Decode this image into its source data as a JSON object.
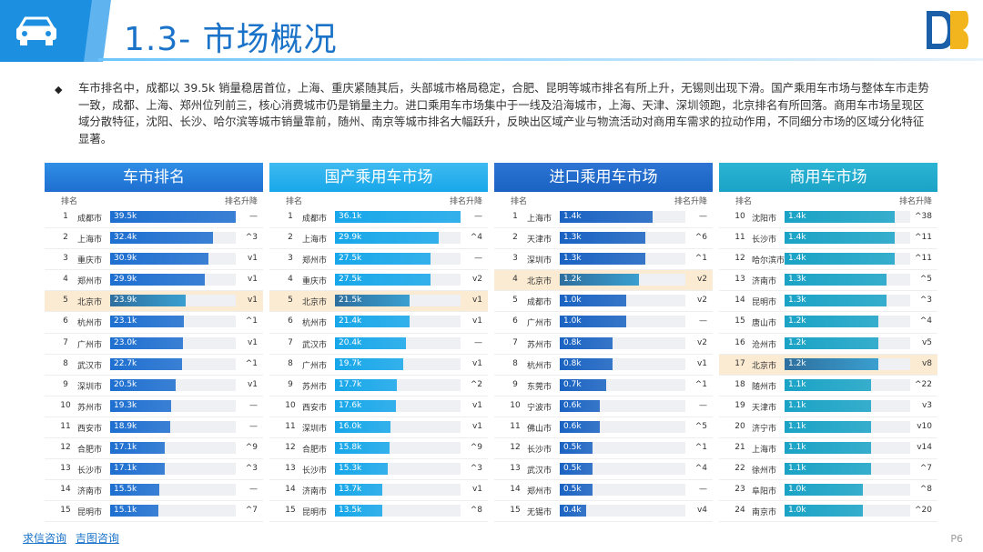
{
  "header": {
    "title": "1.3- 市场概况"
  },
  "summary": "车市排名中，成都以 39.5k 销量稳居首位，上海、重庆紧随其后，头部城市格局稳定，合肥、昆明等城市排名有所上升，无锡则出现下滑。国产乘用车市场与整体车市走势一致，成都、上海、郑州位列前三，核心消费城市仍是销量主力。进口乘用车市场集中于一线及沿海城市，上海、天津、深圳领跑，北京排名有所回落。商用车市场呈现区域分散特征，沈阳、长沙、哈尔滨等城市销量靠前，随州、南京等城市排名大幅跃升，反映出区域产业与物流活动对商用车需求的拉动作用，不同细分市场的区域分化特征显著。",
  "colors": {
    "bar1": "#1e6fd0",
    "bar2": "#17a7ea",
    "bar3": "#1a63c2",
    "bar4": "#1aa3c6",
    "highlight_bar": "#2e6f9e"
  },
  "panels": [
    {
      "title": "车市排名",
      "rank_label": "排名",
      "change_label": "排名升降",
      "max": 39.5,
      "rows": [
        {
          "rank": "1",
          "city": "成都市",
          "value": 39.5,
          "label": "39.5k",
          "change": "—"
        },
        {
          "rank": "2",
          "city": "上海市",
          "value": 32.4,
          "label": "32.4k",
          "change": "^3"
        },
        {
          "rank": "3",
          "city": "重庆市",
          "value": 30.9,
          "label": "30.9k",
          "change": "v1"
        },
        {
          "rank": "4",
          "city": "郑州市",
          "value": 29.9,
          "label": "29.9k",
          "change": "v1"
        },
        {
          "rank": "5",
          "city": "北京市",
          "value": 23.9,
          "label": "23.9k",
          "change": "v1",
          "highlight": true
        },
        {
          "rank": "6",
          "city": "杭州市",
          "value": 23.1,
          "label": "23.1k",
          "change": "^1"
        },
        {
          "rank": "7",
          "city": "广州市",
          "value": 23.0,
          "label": "23.0k",
          "change": "v1"
        },
        {
          "rank": "8",
          "city": "武汉市",
          "value": 22.7,
          "label": "22.7k",
          "change": "^1"
        },
        {
          "rank": "9",
          "city": "深圳市",
          "value": 20.5,
          "label": "20.5k",
          "change": "v1"
        },
        {
          "rank": "10",
          "city": "苏州市",
          "value": 19.3,
          "label": "19.3k",
          "change": "—"
        },
        {
          "rank": "11",
          "city": "西安市",
          "value": 18.9,
          "label": "18.9k",
          "change": "—"
        },
        {
          "rank": "12",
          "city": "合肥市",
          "value": 17.1,
          "label": "17.1k",
          "change": "^9"
        },
        {
          "rank": "13",
          "city": "长沙市",
          "value": 17.1,
          "label": "17.1k",
          "change": "^3"
        },
        {
          "rank": "14",
          "city": "济南市",
          "value": 15.5,
          "label": "15.5k",
          "change": "—"
        },
        {
          "rank": "15",
          "city": "昆明市",
          "value": 15.1,
          "label": "15.1k",
          "change": "^7"
        }
      ]
    },
    {
      "title": "国产乘用车市场",
      "rank_label": "排名",
      "change_label": "排名升降",
      "max": 36.1,
      "rows": [
        {
          "rank": "1",
          "city": "成都市",
          "value": 36.1,
          "label": "36.1k",
          "change": "—"
        },
        {
          "rank": "2",
          "city": "上海市",
          "value": 29.9,
          "label": "29.9k",
          "change": "^4"
        },
        {
          "rank": "3",
          "city": "郑州市",
          "value": 27.5,
          "label": "27.5k",
          "change": "—"
        },
        {
          "rank": "4",
          "city": "重庆市",
          "value": 27.5,
          "label": "27.5k",
          "change": "v2"
        },
        {
          "rank": "5",
          "city": "北京市",
          "value": 21.5,
          "label": "21.5k",
          "change": "v1",
          "highlight": true
        },
        {
          "rank": "6",
          "city": "杭州市",
          "value": 21.4,
          "label": "21.4k",
          "change": "v1"
        },
        {
          "rank": "7",
          "city": "武汉市",
          "value": 20.4,
          "label": "20.4k",
          "change": "—"
        },
        {
          "rank": "8",
          "city": "广州市",
          "value": 19.7,
          "label": "19.7k",
          "change": "v1"
        },
        {
          "rank": "9",
          "city": "苏州市",
          "value": 17.7,
          "label": "17.7k",
          "change": "^2"
        },
        {
          "rank": "10",
          "city": "西安市",
          "value": 17.6,
          "label": "17.6k",
          "change": "v1"
        },
        {
          "rank": "11",
          "city": "深圳市",
          "value": 16.0,
          "label": "16.0k",
          "change": "v1"
        },
        {
          "rank": "12",
          "city": "合肥市",
          "value": 15.8,
          "label": "15.8k",
          "change": "^9"
        },
        {
          "rank": "13",
          "city": "长沙市",
          "value": 15.3,
          "label": "15.3k",
          "change": "^3"
        },
        {
          "rank": "14",
          "city": "济南市",
          "value": 13.7,
          "label": "13.7k",
          "change": "v1"
        },
        {
          "rank": "15",
          "city": "昆明市",
          "value": 13.5,
          "label": "13.5k",
          "change": "^8"
        }
      ]
    },
    {
      "title": "进口乘用车市场",
      "rank_label": "排名",
      "change_label": "排名升降",
      "max": 1.9,
      "rows": [
        {
          "rank": "1",
          "city": "上海市",
          "value": 1.4,
          "label": "1.4k",
          "change": "—"
        },
        {
          "rank": "2",
          "city": "天津市",
          "value": 1.3,
          "label": "1.3k",
          "change": "^6"
        },
        {
          "rank": "3",
          "city": "深圳市",
          "value": 1.3,
          "label": "1.3k",
          "change": "^1"
        },
        {
          "rank": "4",
          "city": "北京市",
          "value": 1.2,
          "label": "1.2k",
          "change": "v2",
          "highlight": true
        },
        {
          "rank": "5",
          "city": "成都市",
          "value": 1.0,
          "label": "1.0k",
          "change": "v2"
        },
        {
          "rank": "6",
          "city": "广州市",
          "value": 1.0,
          "label": "1.0k",
          "change": "—"
        },
        {
          "rank": "7",
          "city": "苏州市",
          "value": 0.8,
          "label": "0.8k",
          "change": "v2"
        },
        {
          "rank": "8",
          "city": "杭州市",
          "value": 0.8,
          "label": "0.8k",
          "change": "v1"
        },
        {
          "rank": "9",
          "city": "东莞市",
          "value": 0.7,
          "label": "0.7k",
          "change": "^1"
        },
        {
          "rank": "10",
          "city": "宁波市",
          "value": 0.6,
          "label": "0.6k",
          "change": "—"
        },
        {
          "rank": "11",
          "city": "佛山市",
          "value": 0.6,
          "label": "0.6k",
          "change": "^5"
        },
        {
          "rank": "12",
          "city": "长沙市",
          "value": 0.5,
          "label": "0.5k",
          "change": "^1"
        },
        {
          "rank": "13",
          "city": "武汉市",
          "value": 0.5,
          "label": "0.5k",
          "change": "^4"
        },
        {
          "rank": "14",
          "city": "郑州市",
          "value": 0.5,
          "label": "0.5k",
          "change": "—"
        },
        {
          "rank": "15",
          "city": "无锡市",
          "value": 0.4,
          "label": "0.4k",
          "change": "v4"
        }
      ]
    },
    {
      "title": "商用车市场",
      "rank_label": "排名",
      "change_label": "排名升降",
      "max": 1.6,
      "rows": [
        {
          "rank": "10",
          "city": "沈阳市",
          "value": 1.4,
          "label": "1.4k",
          "change": "^38"
        },
        {
          "rank": "11",
          "city": "长沙市",
          "value": 1.4,
          "label": "1.4k",
          "change": "^11"
        },
        {
          "rank": "12",
          "city": "哈尔滨市",
          "value": 1.4,
          "label": "1.4k",
          "change": "^11"
        },
        {
          "rank": "13",
          "city": "济南市",
          "value": 1.3,
          "label": "1.3k",
          "change": "^5"
        },
        {
          "rank": "14",
          "city": "昆明市",
          "value": 1.3,
          "label": "1.3k",
          "change": "^3"
        },
        {
          "rank": "15",
          "city": "唐山市",
          "value": 1.2,
          "label": "1.2k",
          "change": "^4"
        },
        {
          "rank": "16",
          "city": "沧州市",
          "value": 1.2,
          "label": "1.2k",
          "change": "v5"
        },
        {
          "rank": "17",
          "city": "北京市",
          "value": 1.2,
          "label": "1.2k",
          "change": "v8",
          "highlight": true
        },
        {
          "rank": "18",
          "city": "随州市",
          "value": 1.1,
          "label": "1.1k",
          "change": "^22"
        },
        {
          "rank": "19",
          "city": "天津市",
          "value": 1.1,
          "label": "1.1k",
          "change": "v3"
        },
        {
          "rank": "20",
          "city": "济宁市",
          "value": 1.1,
          "label": "1.1k",
          "change": "v10"
        },
        {
          "rank": "21",
          "city": "上海市",
          "value": 1.1,
          "label": "1.1k",
          "change": "v14"
        },
        {
          "rank": "22",
          "city": "徐州市",
          "value": 1.1,
          "label": "1.1k",
          "change": "^7"
        },
        {
          "rank": "23",
          "city": "阜阳市",
          "value": 1.0,
          "label": "1.0k",
          "change": "^8"
        },
        {
          "rank": "24",
          "city": "南京市",
          "value": 1.0,
          "label": "1.0k",
          "change": "^20"
        }
      ]
    }
  ],
  "footer": {
    "link1": "求信咨询",
    "link2": "吉图咨询",
    "page": "P6"
  }
}
